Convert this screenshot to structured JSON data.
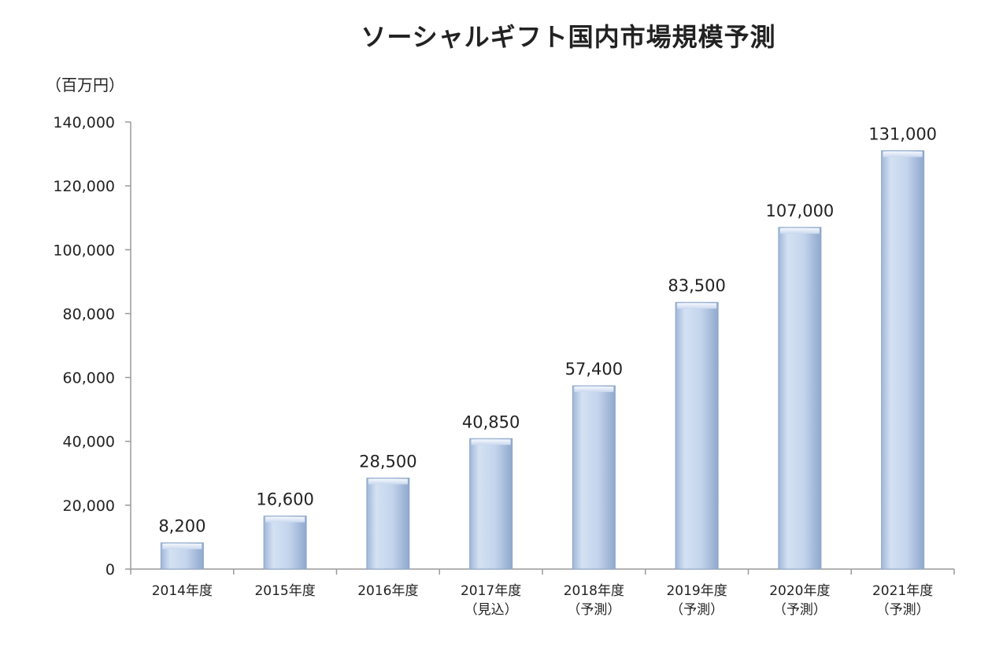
{
  "chart_data": {
    "type": "bar",
    "title": "ソーシャルギフト国内市場規模予測",
    "unit_label": "（百万円）",
    "xlabel": "",
    "ylabel": "",
    "ylim": [
      0,
      140000
    ],
    "y_ticks": [
      0,
      20000,
      40000,
      60000,
      80000,
      100000,
      120000,
      140000
    ],
    "y_tick_labels": [
      "0",
      "20,000",
      "40,000",
      "60,000",
      "80,000",
      "100,000",
      "120,000",
      "140,000"
    ],
    "grid": false,
    "categories": [
      [
        "2014年度"
      ],
      [
        "2015年度"
      ],
      [
        "2016年度"
      ],
      [
        "2017年度",
        "（見込）"
      ],
      [
        "2018年度",
        "（予測）"
      ],
      [
        "2019年度",
        "（予測）"
      ],
      [
        "2020年度",
        "（予測）"
      ],
      [
        "2021年度",
        "（予測）"
      ]
    ],
    "values": [
      8200,
      16600,
      28500,
      40850,
      57400,
      83500,
      107000,
      131000
    ],
    "data_labels": [
      "8,200",
      "16,600",
      "28,500",
      "40,850",
      "57,400",
      "83,500",
      "107,000",
      "131,000"
    ],
    "bar_color": "#c5d6ee",
    "bar_edge_color": "#8ea6c8"
  }
}
